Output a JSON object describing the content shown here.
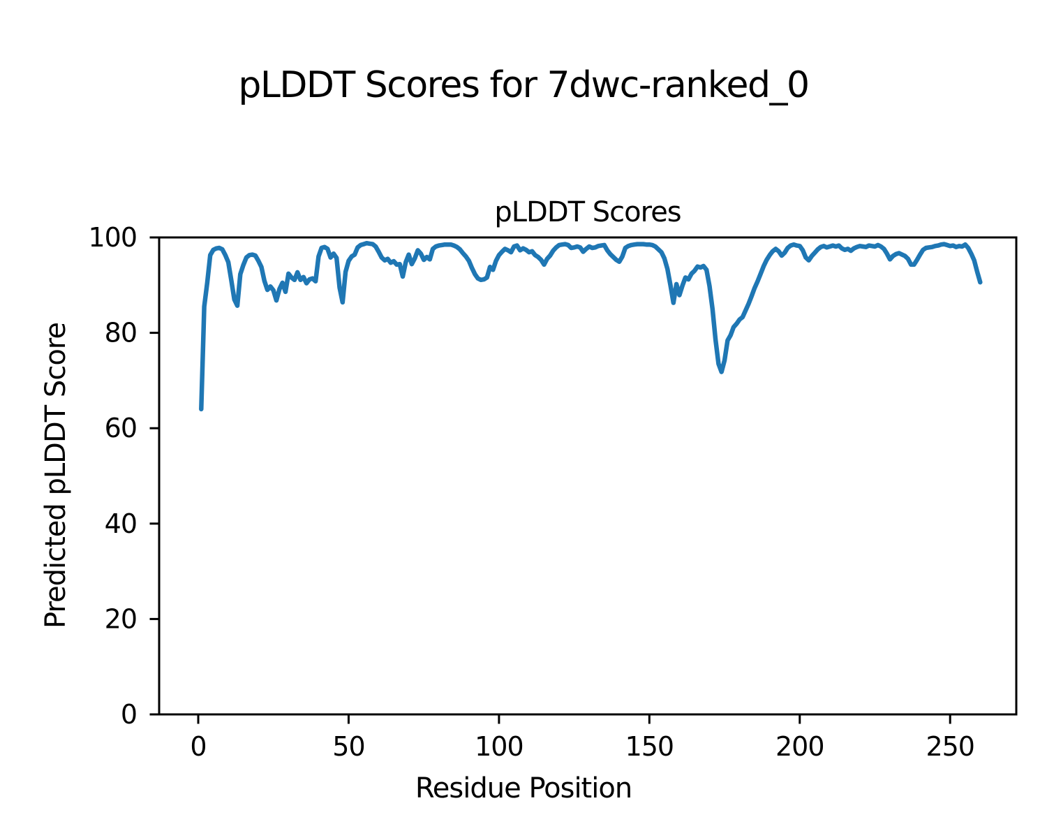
{
  "figure": {
    "suptitle": "pLDDT Scores for 7dwc-ranked_0",
    "background": "#ffffff"
  },
  "chart_data": {
    "type": "line",
    "title": "pLDDT Scores",
    "xlabel": "Residue Position",
    "ylabel": "Predicted pLDDT Score",
    "x_ticks": [
      0,
      50,
      100,
      150,
      200,
      250
    ],
    "y_ticks": [
      0,
      20,
      40,
      60,
      80,
      100
    ],
    "xlim": [
      -13,
      272
    ],
    "ylim": [
      0,
      100
    ],
    "grid": false,
    "legend_position": "none",
    "line_color": "#1f77b4",
    "axis_color": "#000000",
    "series": [
      {
        "name": "pLDDT",
        "points": [
          [
            1,
            64
          ],
          [
            2,
            85.5
          ],
          [
            3,
            90.5
          ],
          [
            4,
            96.3
          ],
          [
            5,
            97.4
          ],
          [
            6,
            97.7
          ],
          [
            7,
            97.8
          ],
          [
            8,
            97.5
          ],
          [
            9,
            96.3
          ],
          [
            10,
            94.8
          ],
          [
            11,
            91
          ],
          [
            12,
            87
          ],
          [
            13,
            85.7
          ],
          [
            14,
            92.3
          ],
          [
            15,
            94.2
          ],
          [
            16,
            95.8
          ],
          [
            17,
            96.3
          ],
          [
            18,
            96.4
          ],
          [
            19,
            96.2
          ],
          [
            20,
            95.1
          ],
          [
            21,
            93.8
          ],
          [
            22,
            90.9
          ],
          [
            23,
            89
          ],
          [
            24,
            89.7
          ],
          [
            25,
            88.9
          ],
          [
            26,
            86.8
          ],
          [
            27,
            89.2
          ],
          [
            28,
            90.5
          ],
          [
            29,
            88.6
          ],
          [
            30,
            92.4
          ],
          [
            31,
            91.6
          ],
          [
            32,
            91.1
          ],
          [
            33,
            92.7
          ],
          [
            34,
            91.1
          ],
          [
            35,
            91.7
          ],
          [
            36,
            90.4
          ],
          [
            37,
            91.2
          ],
          [
            38,
            91.4
          ],
          [
            39,
            90.8
          ],
          [
            40,
            96
          ],
          [
            41,
            97.8
          ],
          [
            42,
            98
          ],
          [
            43,
            97.6
          ],
          [
            44,
            95.8
          ],
          [
            45,
            96.6
          ],
          [
            46,
            95.7
          ],
          [
            47,
            89.5
          ],
          [
            48,
            86.4
          ],
          [
            49,
            92.8
          ],
          [
            50,
            95.1
          ],
          [
            51,
            96
          ],
          [
            52,
            96.4
          ],
          [
            53,
            97.9
          ],
          [
            54,
            98.4
          ],
          [
            55,
            98.6
          ],
          [
            56,
            98.8
          ],
          [
            57,
            98.7
          ],
          [
            58,
            98.6
          ],
          [
            59,
            98.1
          ],
          [
            60,
            97
          ],
          [
            61,
            95.8
          ],
          [
            62,
            95.2
          ],
          [
            63,
            95.5
          ],
          [
            64,
            94.7
          ],
          [
            65,
            95
          ],
          [
            66,
            94.3
          ],
          [
            67,
            94.4
          ],
          [
            68,
            91.8
          ],
          [
            69,
            94.8
          ],
          [
            70,
            96.4
          ],
          [
            71,
            94.4
          ],
          [
            72,
            95.6
          ],
          [
            73,
            97.3
          ],
          [
            74,
            96.6
          ],
          [
            75,
            95.3
          ],
          [
            76,
            95.9
          ],
          [
            77,
            95.4
          ],
          [
            78,
            97.6
          ],
          [
            79,
            98.1
          ],
          [
            80,
            98.3
          ],
          [
            81,
            98.4
          ],
          [
            82,
            98.5
          ],
          [
            83,
            98.5
          ],
          [
            84,
            98.5
          ],
          [
            85,
            98.3
          ],
          [
            86,
            98
          ],
          [
            87,
            97.5
          ],
          [
            88,
            96.7
          ],
          [
            89,
            96
          ],
          [
            90,
            95.1
          ],
          [
            91,
            93.6
          ],
          [
            92,
            92.3
          ],
          [
            93,
            91.4
          ],
          [
            94,
            91.1
          ],
          [
            95,
            91.2
          ],
          [
            96,
            91.6
          ],
          [
            97,
            93.8
          ],
          [
            98,
            93.2
          ],
          [
            99,
            95.1
          ],
          [
            100,
            96.3
          ],
          [
            101,
            97
          ],
          [
            102,
            97.6
          ],
          [
            103,
            97.3
          ],
          [
            104,
            96.9
          ],
          [
            105,
            98.1
          ],
          [
            106,
            98.3
          ],
          [
            107,
            97.3
          ],
          [
            108,
            97.7
          ],
          [
            109,
            97.4
          ],
          [
            110,
            96.9
          ],
          [
            111,
            97.1
          ],
          [
            112,
            96.3
          ],
          [
            113,
            95.9
          ],
          [
            114,
            95.3
          ],
          [
            115,
            94.3
          ],
          [
            116,
            95.5
          ],
          [
            117,
            96.2
          ],
          [
            118,
            97.2
          ],
          [
            119,
            97.9
          ],
          [
            120,
            98.4
          ],
          [
            121,
            98.5
          ],
          [
            122,
            98.6
          ],
          [
            123,
            98.4
          ],
          [
            124,
            97.8
          ],
          [
            125,
            97.9
          ],
          [
            126,
            98.1
          ],
          [
            127,
            97.9
          ],
          [
            128,
            97
          ],
          [
            129,
            97.6
          ],
          [
            130,
            98.1
          ],
          [
            131,
            97.8
          ],
          [
            132,
            97.9
          ],
          [
            133,
            98.2
          ],
          [
            134,
            98.3
          ],
          [
            135,
            98.4
          ],
          [
            136,
            97.3
          ],
          [
            137,
            96.5
          ],
          [
            138,
            95.9
          ],
          [
            139,
            95.3
          ],
          [
            140,
            94.9
          ],
          [
            141,
            96
          ],
          [
            142,
            97.8
          ],
          [
            143,
            98.2
          ],
          [
            144,
            98.4
          ],
          [
            145,
            98.5
          ],
          [
            146,
            98.6
          ],
          [
            147,
            98.6
          ],
          [
            148,
            98.6
          ],
          [
            149,
            98.5
          ],
          [
            150,
            98.5
          ],
          [
            151,
            98.4
          ],
          [
            152,
            98.1
          ],
          [
            153,
            97.5
          ],
          [
            154,
            96.9
          ],
          [
            155,
            95.6
          ],
          [
            156,
            93.4
          ],
          [
            157,
            90
          ],
          [
            158,
            86.3
          ],
          [
            159,
            90.2
          ],
          [
            160,
            87.9
          ],
          [
            161,
            89.9
          ],
          [
            162,
            91.6
          ],
          [
            163,
            91.2
          ],
          [
            164,
            92.4
          ],
          [
            165,
            93
          ],
          [
            166,
            93.9
          ],
          [
            167,
            93.7
          ],
          [
            168,
            94
          ],
          [
            169,
            93.2
          ],
          [
            170,
            89.8
          ],
          [
            171,
            85
          ],
          [
            172,
            78.6
          ],
          [
            173,
            73.5
          ],
          [
            174,
            71.8
          ],
          [
            175,
            74.2
          ],
          [
            176,
            78.4
          ],
          [
            177,
            79.5
          ],
          [
            178,
            81.2
          ],
          [
            179,
            81.9
          ],
          [
            180,
            82.8
          ],
          [
            181,
            83.3
          ],
          [
            182,
            84.7
          ],
          [
            183,
            86.1
          ],
          [
            184,
            87.7
          ],
          [
            185,
            89.4
          ],
          [
            186,
            90.8
          ],
          [
            187,
            92.4
          ],
          [
            188,
            94
          ],
          [
            189,
            95.3
          ],
          [
            190,
            96.3
          ],
          [
            191,
            97.1
          ],
          [
            192,
            97.6
          ],
          [
            193,
            97.1
          ],
          [
            194,
            96.2
          ],
          [
            195,
            96.8
          ],
          [
            196,
            97.8
          ],
          [
            197,
            98.3
          ],
          [
            198,
            98.5
          ],
          [
            199,
            98.3
          ],
          [
            200,
            98.2
          ],
          [
            201,
            97.3
          ],
          [
            202,
            95.8
          ],
          [
            203,
            95.2
          ],
          [
            204,
            96.1
          ],
          [
            205,
            96.8
          ],
          [
            206,
            97.5
          ],
          [
            207,
            98
          ],
          [
            208,
            98.2
          ],
          [
            209,
            97.9
          ],
          [
            210,
            98.1
          ],
          [
            211,
            98.3
          ],
          [
            212,
            98.1
          ],
          [
            213,
            98.3
          ],
          [
            214,
            97.7
          ],
          [
            215,
            97.4
          ],
          [
            216,
            97.6
          ],
          [
            217,
            97.2
          ],
          [
            218,
            97.7
          ],
          [
            219,
            98
          ],
          [
            220,
            98.2
          ],
          [
            221,
            98.1
          ],
          [
            222,
            98
          ],
          [
            223,
            98.3
          ],
          [
            224,
            98.2
          ],
          [
            225,
            98.1
          ],
          [
            226,
            98.4
          ],
          [
            227,
            98.1
          ],
          [
            228,
            97.6
          ],
          [
            229,
            96.6
          ],
          [
            230,
            95.4
          ],
          [
            231,
            96.1
          ],
          [
            232,
            96.5
          ],
          [
            233,
            96.7
          ],
          [
            234,
            96.4
          ],
          [
            235,
            96.1
          ],
          [
            236,
            95.5
          ],
          [
            237,
            94.3
          ],
          [
            238,
            94.3
          ],
          [
            239,
            95.3
          ],
          [
            240,
            96.4
          ],
          [
            241,
            97.4
          ],
          [
            242,
            97.8
          ],
          [
            243,
            97.9
          ],
          [
            244,
            98
          ],
          [
            245,
            98.2
          ],
          [
            246,
            98.3
          ],
          [
            247,
            98.5
          ],
          [
            248,
            98.6
          ],
          [
            249,
            98.4
          ],
          [
            250,
            98.2
          ],
          [
            251,
            98.3
          ],
          [
            252,
            98
          ],
          [
            253,
            98.2
          ],
          [
            254,
            98.1
          ],
          [
            255,
            98.5
          ],
          [
            256,
            97.8
          ],
          [
            257,
            96.6
          ],
          [
            258,
            95.2
          ],
          [
            259,
            92.8
          ],
          [
            260,
            90.6
          ]
        ]
      }
    ]
  }
}
